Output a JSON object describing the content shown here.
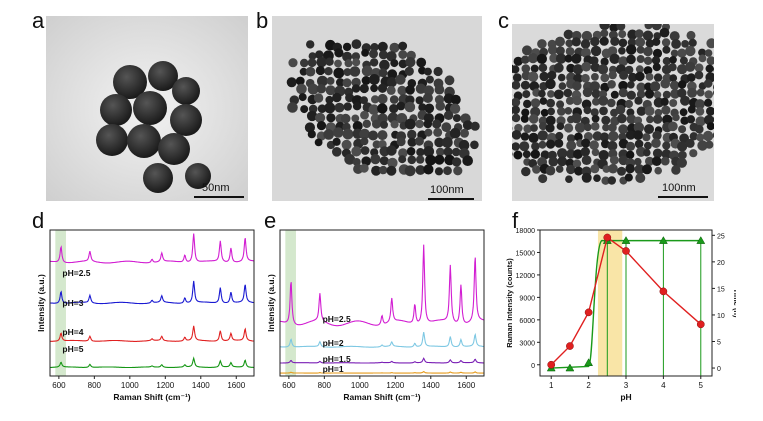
{
  "panels": {
    "a": {
      "letter": "a",
      "scale_label": "50nm"
    },
    "b": {
      "letter": "b",
      "scale_label": "100nm"
    },
    "c": {
      "letter": "c",
      "scale_label": "100nm"
    },
    "d": {
      "letter": "d"
    },
    "e": {
      "letter": "e"
    },
    "f": {
      "letter": "f"
    }
  },
  "chart_data": [
    {
      "id": "d",
      "type": "line",
      "xlabel": "Raman Shift (cm⁻¹)",
      "ylabel": "Intensity (a.u.)",
      "xlim": [
        550,
        1700
      ],
      "xticks": [
        600,
        800,
        1000,
        1200,
        1400,
        1600
      ],
      "highlight_band": [
        580,
        640
      ],
      "peaks": [
        612,
        775,
        1125,
        1180,
        1310,
        1360,
        1510,
        1570,
        1650
      ],
      "series": [
        {
          "name": "pH=2.5",
          "color": "#d21ed2",
          "offset": 0.78,
          "scale": 0.2
        },
        {
          "name": "pH=3",
          "color": "#1a1ad2",
          "offset": 0.5,
          "scale": 0.15
        },
        {
          "name": "pH=4",
          "color": "#e02020",
          "offset": 0.24,
          "scale": 0.1
        },
        {
          "name": "pH=5",
          "color": "#149614",
          "offset": 0.06,
          "scale": 0.06
        }
      ]
    },
    {
      "id": "e",
      "type": "line",
      "xlabel": "Raman Shift (cm⁻¹)",
      "ylabel": "Intensity (a.u.)",
      "xlim": [
        550,
        1700
      ],
      "xticks": [
        600,
        800,
        1000,
        1200,
        1400,
        1600
      ],
      "highlight_band": [
        580,
        640
      ],
      "peaks": [
        612,
        775,
        1125,
        1180,
        1310,
        1360,
        1510,
        1570,
        1650
      ],
      "series": [
        {
          "name": "pH=2.5",
          "color": "#d21ed2",
          "offset": 0.36,
          "scale": 0.55
        },
        {
          "name": "pH=2",
          "color": "#7ec8e3",
          "offset": 0.2,
          "scale": 0.1
        },
        {
          "name": "pH=1.5",
          "color": "#7a1fb5",
          "offset": 0.09,
          "scale": 0.03
        },
        {
          "name": "pH=1",
          "color": "#e59a1a",
          "offset": 0.02,
          "scale": 0.01
        }
      ]
    },
    {
      "id": "f",
      "type": "line",
      "xlabel": "pH",
      "ylabel": "Raman Intensity (counts)",
      "y2label": "Time (h)",
      "xlim": [
        0.7,
        5.3
      ],
      "xticks": [
        1,
        2,
        3,
        4,
        5
      ],
      "ylim": [
        -1500,
        18000
      ],
      "yticks": [
        0,
        3000,
        6000,
        9000,
        12000,
        15000,
        18000
      ],
      "y2lim": [
        -1.5,
        26
      ],
      "y2ticks": [
        0,
        5,
        10,
        15,
        20,
        25
      ],
      "highlight_band": [
        2.25,
        2.9
      ],
      "series": [
        {
          "name": "Raman Intensity",
          "color": "#e02020",
          "marker": "circle",
          "axis": "left",
          "x": [
            1,
            1.5,
            2,
            2.5,
            3,
            4,
            5
          ],
          "y": [
            0,
            2500,
            7000,
            17000,
            15200,
            9800,
            5400
          ]
        },
        {
          "name": "Time",
          "color": "#1a9a1a",
          "marker": "triangle",
          "axis": "right",
          "x": [
            1,
            1.5,
            2,
            2.5,
            3,
            4,
            5
          ],
          "y": [
            0,
            0,
            1,
            24,
            24,
            24,
            24
          ]
        }
      ]
    }
  ]
}
